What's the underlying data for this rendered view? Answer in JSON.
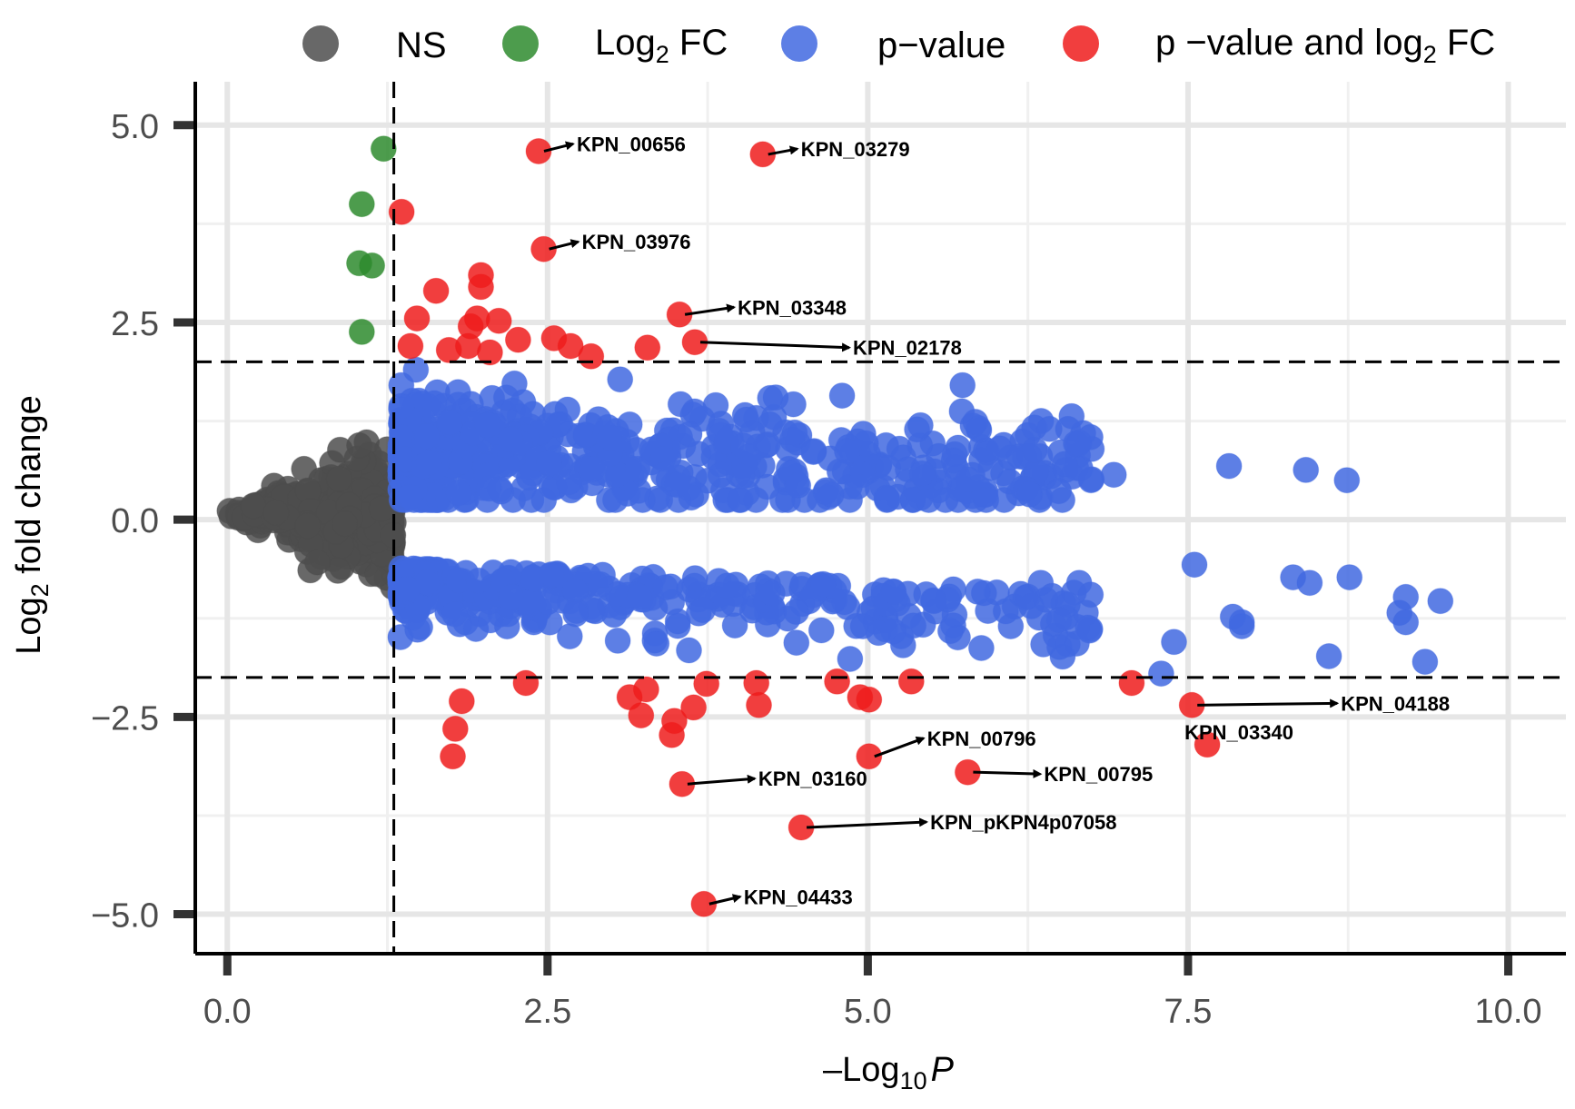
{
  "chart_data": {
    "type": "scatter",
    "title": "",
    "xlabel_prefix": "–Log",
    "xlabel_sub": "10",
    "xlabel_italic": "P",
    "ylabel_prefix": "Log",
    "ylabel_sub": "2",
    "ylabel_suffix": " fold change",
    "xlim": [
      -0.25,
      10.45
    ],
    "ylim": [
      -5.5,
      5.55
    ],
    "x_ticks": [
      0,
      2.5,
      5,
      7.5,
      10
    ],
    "x_tick_labels": [
      "0.0",
      "2.5",
      "5.0",
      "7.5",
      "10.0"
    ],
    "y_ticks": [
      -5,
      -2.5,
      0,
      2.5,
      5
    ],
    "y_tick_labels": [
      "−5.0",
      "−2.5",
      "0.0",
      "2.5",
      "5.0"
    ],
    "cutoffs": {
      "x": 1.3,
      "y_upper": 2.0,
      "y_lower": -2.0
    },
    "colors": {
      "NS": "#4d4d4d",
      "Log2FC": "#2e8b2e",
      "pvalue": "#4169e1",
      "both": "#ee1c1c"
    },
    "legend": [
      {
        "key": "NS",
        "label": "NS"
      },
      {
        "key": "Log2FC",
        "label_prefix": "Log",
        "label_sub": "2",
        "label_suffix": " FC"
      },
      {
        "key": "pvalue",
        "label": "p−value"
      },
      {
        "key": "both",
        "label_prefix": "p −value and log",
        "label_sub": "2",
        "label_suffix": " FC"
      }
    ],
    "series": [
      {
        "name": "Log2 FC",
        "key": "Log2FC",
        "points": [
          [
            1.22,
            4.7
          ],
          [
            1.05,
            4.0
          ],
          [
            1.03,
            3.25
          ],
          [
            1.13,
            3.22
          ],
          [
            1.05,
            2.38
          ]
        ]
      },
      {
        "name": "p-value and log2 FC",
        "key": "both",
        "points": [
          [
            2.43,
            4.67
          ],
          [
            4.18,
            4.63
          ],
          [
            1.36,
            3.9
          ],
          [
            2.47,
            3.43
          ],
          [
            1.98,
            3.1
          ],
          [
            1.98,
            2.95
          ],
          [
            1.63,
            2.9
          ],
          [
            1.48,
            2.55
          ],
          [
            1.9,
            2.45
          ],
          [
            1.95,
            2.55
          ],
          [
            2.12,
            2.52
          ],
          [
            1.43,
            2.2
          ],
          [
            1.73,
            2.15
          ],
          [
            1.88,
            2.2
          ],
          [
            2.05,
            2.12
          ],
          [
            2.27,
            2.28
          ],
          [
            2.55,
            2.3
          ],
          [
            2.68,
            2.2
          ],
          [
            2.84,
            2.07
          ],
          [
            3.28,
            2.18
          ],
          [
            3.53,
            2.6
          ],
          [
            3.65,
            2.25
          ],
          [
            1.83,
            -2.3
          ],
          [
            1.78,
            -2.65
          ],
          [
            1.76,
            -3.0
          ],
          [
            2.33,
            -2.07
          ],
          [
            3.14,
            -2.25
          ],
          [
            3.27,
            -2.15
          ],
          [
            3.23,
            -2.48
          ],
          [
            3.47,
            -2.73
          ],
          [
            3.49,
            -2.55
          ],
          [
            3.64,
            -2.38
          ],
          [
            3.74,
            -2.08
          ],
          [
            4.13,
            -2.07
          ],
          [
            4.15,
            -2.35
          ],
          [
            3.55,
            -3.35
          ],
          [
            3.72,
            -4.87
          ],
          [
            4.48,
            -3.9
          ],
          [
            4.76,
            -2.05
          ],
          [
            4.94,
            -2.25
          ],
          [
            5.01,
            -2.28
          ],
          [
            5.01,
            -3.0
          ],
          [
            5.34,
            -2.05
          ],
          [
            5.78,
            -3.2
          ],
          [
            7.06,
            -2.07
          ],
          [
            7.53,
            -2.35
          ],
          [
            7.65,
            -2.85
          ]
        ]
      }
    ],
    "ns_cloud": {
      "x_range": [
        0,
        1.3
      ],
      "y_range": [
        -1.0,
        2.0
      ]
    },
    "pvalue_cloud": {
      "x_range": [
        1.3,
        9.7
      ],
      "upper_band": [
        0.2,
        1.9
      ],
      "lower_band": [
        -1.9,
        -0.2
      ]
    },
    "pvalue_outliers": [
      [
        6.92,
        0.57
      ],
      [
        7.82,
        0.68
      ],
      [
        8.42,
        0.63
      ],
      [
        8.74,
        0.5
      ],
      [
        7.55,
        -0.57
      ],
      [
        7.85,
        -1.23
      ],
      [
        7.92,
        -1.3
      ],
      [
        7.92,
        -1.35
      ],
      [
        8.32,
        -0.73
      ],
      [
        8.45,
        -0.8
      ],
      [
        8.76,
        -0.73
      ],
      [
        9.15,
        -1.18
      ],
      [
        9.2,
        -0.98
      ],
      [
        9.2,
        -1.3
      ],
      [
        9.47,
        -1.03
      ],
      [
        9.35,
        -1.8
      ],
      [
        8.6,
        -1.73
      ],
      [
        7.29,
        -1.95
      ],
      [
        7.39,
        -1.55
      ],
      [
        6.65,
        -0.8
      ],
      [
        6.74,
        -0.95
      ],
      [
        6.35,
        -0.8
      ],
      [
        6.37,
        -1.58
      ],
      [
        6.56,
        -1.58
      ]
    ],
    "annotations": [
      {
        "label": "KPN_00656",
        "x": 2.43,
        "y": 4.67
      },
      {
        "label": "KPN_03279",
        "x": 4.18,
        "y": 4.63
      },
      {
        "label": "KPN_03976",
        "x": 2.47,
        "y": 3.43
      },
      {
        "label": "KPN_03348",
        "x": 3.53,
        "y": 2.6
      },
      {
        "label": "KPN_02178",
        "x": 3.65,
        "y": 2.25
      },
      {
        "label": "KPN_04188",
        "x": 7.53,
        "y": -2.35
      },
      {
        "label": "KPN_03340",
        "x": 7.65,
        "y": -2.85
      },
      {
        "label": "KPN_00796",
        "x": 5.01,
        "y": -3.0
      },
      {
        "label": "KPN_00795",
        "x": 5.78,
        "y": -3.2
      },
      {
        "label": "KPN_03160",
        "x": 3.55,
        "y": -3.35
      },
      {
        "label": "KPN_pKPN4p07058",
        "x": 4.48,
        "y": -3.9
      },
      {
        "label": "KPN_04433",
        "x": 3.72,
        "y": -4.87
      }
    ]
  }
}
